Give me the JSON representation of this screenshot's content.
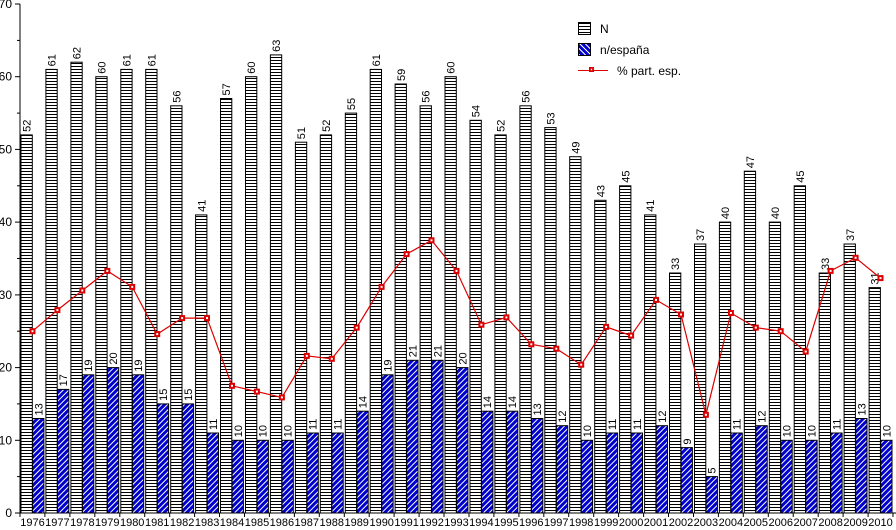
{
  "chart_data": {
    "type": "bar",
    "title": "",
    "xlabel": "",
    "ylabel": "",
    "ylim": [
      0,
      70
    ],
    "y_major_ticks": [
      0,
      10,
      20,
      30,
      40,
      50,
      60,
      70
    ],
    "y_minor_step": 5,
    "grid": false,
    "legend_position": "top-right",
    "bar_value_labels_rotated": true,
    "categories": [
      "1976",
      "1977",
      "1978",
      "1979",
      "1980",
      "1981",
      "1982",
      "1983",
      "1984",
      "1985",
      "1986",
      "1987",
      "1988",
      "1989",
      "1990",
      "1991",
      "1992",
      "1993",
      "1994",
      "1995",
      "1996",
      "1997",
      "1998",
      "1999",
      "2000",
      "2001",
      "2002",
      "2003",
      "2004",
      "2005",
      "2006",
      "2007",
      "2008",
      "2009",
      "2010"
    ],
    "series": [
      {
        "name": "N",
        "type": "bar",
        "fill_style": "horizontal-hatch",
        "hatch_color": "#000000",
        "background_color": "#FFFFFF",
        "values": [
          52,
          61,
          62,
          60,
          61,
          61,
          56,
          41,
          57,
          60,
          63,
          51,
          52,
          55,
          61,
          59,
          56,
          60,
          54,
          52,
          56,
          53,
          49,
          43,
          45,
          41,
          33,
          37,
          40,
          47,
          40,
          45,
          33,
          37,
          31
        ]
      },
      {
        "name": "n/españa",
        "type": "bar",
        "fill_style": "diagonal-hatch",
        "hatch_color": "#FFFFFF",
        "background_color": "#0000CC",
        "values": [
          13,
          17,
          19,
          20,
          19,
          15,
          15,
          11,
          10,
          10,
          10,
          11,
          11,
          14,
          19,
          21,
          21,
          20,
          14,
          14,
          13,
          12,
          10,
          11,
          11,
          12,
          9,
          5,
          11,
          12,
          10,
          10,
          11,
          13,
          10
        ]
      },
      {
        "name": "% part. esp.",
        "type": "line",
        "color": "#DD0000",
        "marker": "square",
        "values": [
          25.0,
          27.9,
          30.6,
          33.3,
          31.1,
          24.6,
          26.8,
          26.8,
          17.5,
          16.7,
          15.9,
          21.6,
          21.2,
          25.5,
          31.1,
          35.6,
          37.5,
          33.3,
          25.9,
          26.9,
          23.2,
          22.6,
          20.4,
          25.6,
          24.4,
          29.3,
          27.3,
          13.5,
          27.5,
          25.5,
          25.0,
          22.2,
          33.3,
          35.1,
          32.3
        ]
      }
    ]
  }
}
